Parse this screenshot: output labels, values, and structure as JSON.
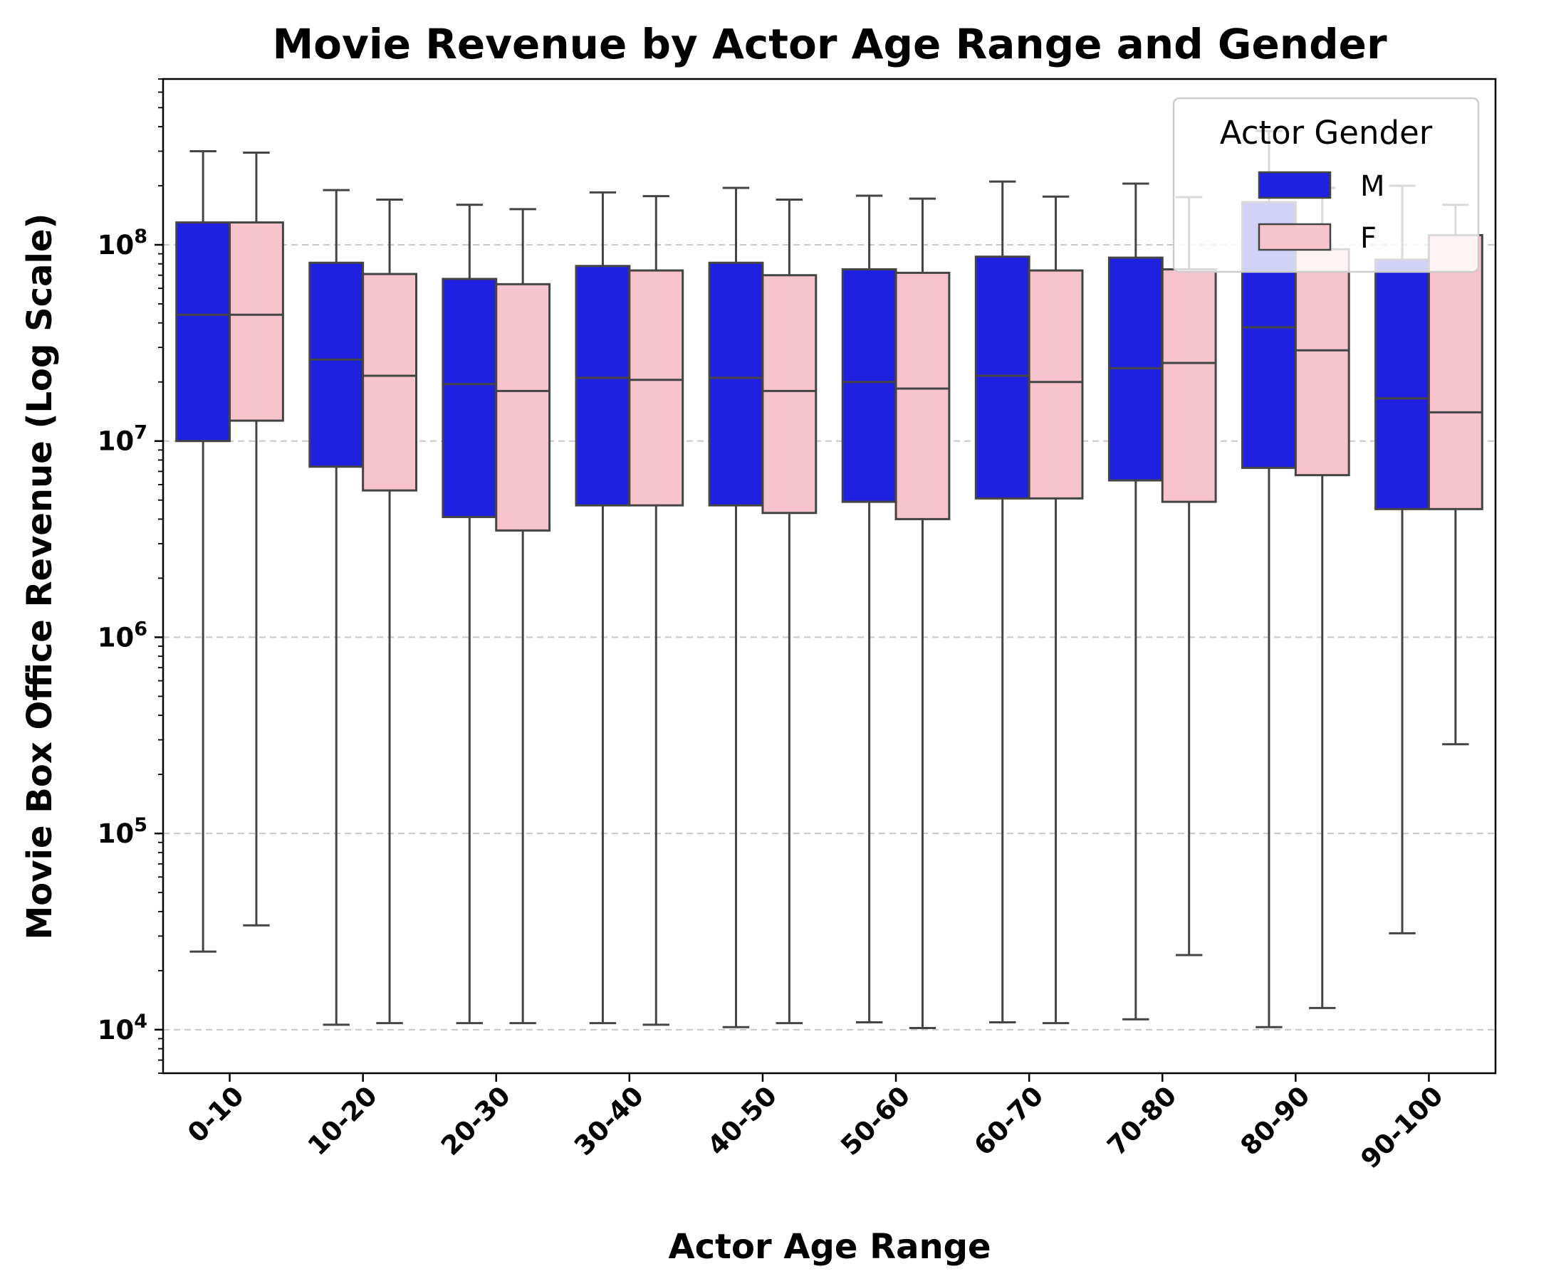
{
  "chart_data": {
    "type": "box",
    "title": "Movie Revenue by Actor Age Range and Gender",
    "xlabel": "Actor Age Range",
    "ylabel": "Movie Box Office Revenue (Log Scale)",
    "y_scale": "log",
    "ylim": [
      6000,
      700000000
    ],
    "y_ticks": [
      10000,
      100000,
      1000000,
      10000000,
      100000000
    ],
    "y_tick_labels": [
      {
        "base": "10",
        "exp": "4"
      },
      {
        "base": "10",
        "exp": "5"
      },
      {
        "base": "10",
        "exp": "6"
      },
      {
        "base": "10",
        "exp": "7"
      },
      {
        "base": "10",
        "exp": "8"
      }
    ],
    "grid": "horizontal dashed at major ticks",
    "categories": [
      "0-10",
      "10-20",
      "20-30",
      "30-40",
      "40-50",
      "50-60",
      "60-70",
      "70-80",
      "80-90",
      "90-100"
    ],
    "legend": {
      "title": "Actor Gender",
      "placement": "top-right"
    },
    "series": [
      {
        "name": "M",
        "color": "#2020e0",
        "boxes": [
          {
            "whislo": 25000,
            "q1": 10000000,
            "med": 44000000,
            "q3": 130000000,
            "whishi": 300000000
          },
          {
            "whislo": 10600,
            "q1": 7400000,
            "med": 26000000,
            "q3": 81000000,
            "whishi": 190000000
          },
          {
            "whislo": 10800,
            "q1": 4100000,
            "med": 19500000,
            "q3": 67000000,
            "whishi": 160000000
          },
          {
            "whislo": 10800,
            "q1": 4700000,
            "med": 21000000,
            "q3": 78000000,
            "whishi": 185000000
          },
          {
            "whislo": 10300,
            "q1": 4700000,
            "med": 21000000,
            "q3": 81000000,
            "whishi": 195000000
          },
          {
            "whislo": 10900,
            "q1": 4900000,
            "med": 20000000,
            "q3": 75000000,
            "whishi": 178000000
          },
          {
            "whislo": 10900,
            "q1": 5100000,
            "med": 21500000,
            "q3": 87000000,
            "whishi": 210000000
          },
          {
            "whislo": 11300,
            "q1": 6300000,
            "med": 23500000,
            "q3": 86000000,
            "whishi": 205000000
          },
          {
            "whislo": 10300,
            "q1": 7300000,
            "med": 38000000,
            "q3": 165000000,
            "whishi": 380000000
          },
          {
            "whislo": 31000,
            "q1": 4500000,
            "med": 16500000,
            "q3": 84000000,
            "whishi": 200000000
          }
        ]
      },
      {
        "name": "F",
        "color": "#f7c3cd",
        "boxes": [
          {
            "whislo": 34000,
            "q1": 12700000,
            "med": 44000000,
            "q3": 130000000,
            "whishi": 295000000
          },
          {
            "whislo": 10800,
            "q1": 5600000,
            "med": 21500000,
            "q3": 71000000,
            "whishi": 170000000
          },
          {
            "whislo": 10800,
            "q1": 3500000,
            "med": 18000000,
            "q3": 63000000,
            "whishi": 152000000
          },
          {
            "whislo": 10600,
            "q1": 4700000,
            "med": 20500000,
            "q3": 74000000,
            "whishi": 177000000
          },
          {
            "whislo": 10800,
            "q1": 4300000,
            "med": 18000000,
            "q3": 70000000,
            "whishi": 170000000
          },
          {
            "whislo": 10200,
            "q1": 4000000,
            "med": 18500000,
            "q3": 72000000,
            "whishi": 172000000
          },
          {
            "whislo": 10800,
            "q1": 5100000,
            "med": 20000000,
            "q3": 74000000,
            "whishi": 176000000
          },
          {
            "whislo": 24000,
            "q1": 4900000,
            "med": 25000000,
            "q3": 75000000,
            "whishi": 175000000
          },
          {
            "whislo": 12900,
            "q1": 6700000,
            "med": 29000000,
            "q3": 95000000,
            "whishi": 195000000
          },
          {
            "whislo": 285000,
            "q1": 4500000,
            "med": 14000000,
            "q3": 112000000,
            "whishi": 160000000
          }
        ]
      }
    ]
  }
}
